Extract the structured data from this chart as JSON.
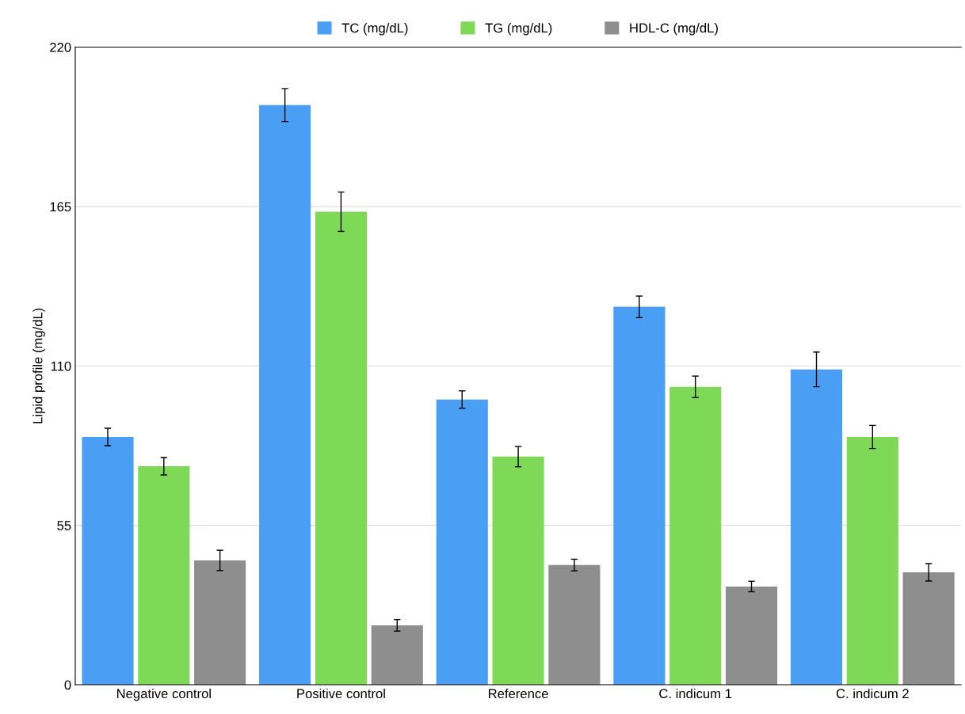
{
  "chart_data": {
    "type": "bar",
    "ylabel": "Lipid profile (mg/dL)",
    "categories": [
      "Negative control",
      "Positive control",
      "Reference",
      "C. indicum 1",
      "C. indicum 2"
    ],
    "series": [
      {
        "name": "TC (mg/dL)",
        "color": "#4a9ff5",
        "values": [
          85.5,
          200,
          98.4,
          130.4,
          108.8
        ],
        "errors": [
          3,
          5.7,
          3,
          3.7,
          6
        ]
      },
      {
        "name": "TG (mg/dL)",
        "color": "#7ed957",
        "values": [
          75.4,
          163.2,
          78.7,
          102.8,
          85.5
        ],
        "errors": [
          3,
          6.8,
          3.5,
          3.7,
          4
        ]
      },
      {
        "name": "HDL-C (mg/dL)",
        "color": "#8e8e8e",
        "values": [
          42.9,
          20.5,
          41.3,
          33.9,
          38.8
        ],
        "errors": [
          3.5,
          2,
          2,
          1.8,
          3
        ]
      }
    ],
    "ylim": [
      0,
      220
    ],
    "yticks": [
      0,
      55,
      110,
      165,
      220
    ],
    "grid": "y",
    "legend": "top"
  }
}
